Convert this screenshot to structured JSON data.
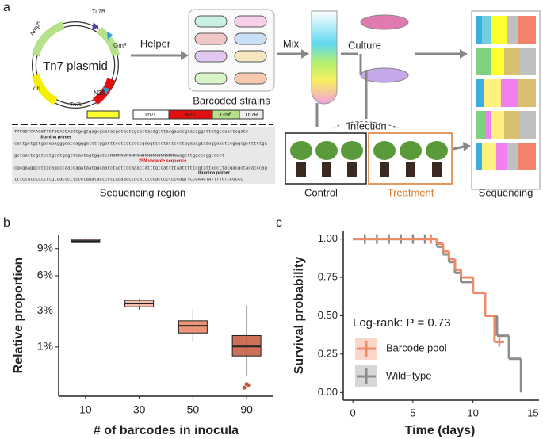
{
  "diagram": {
    "panel_label": "a",
    "plasmid": {
      "title": "Tn7 plasmid",
      "amp": "Ampᴿ",
      "ori": "ori",
      "tn7l": "Tn7L",
      "n25": "N25",
      "gm": "Gmᴿ",
      "tn7r": "Tn7R"
    },
    "construct": {
      "tn7l": "Tn7L",
      "n25": "N25",
      "gm": "Gmᴿ",
      "tn7r": "Tn7R"
    },
    "helper": "Helper",
    "strains": "Barcoded strains",
    "mix": "Mix",
    "culture": "Culture",
    "infection": "Infection",
    "control": "Control",
    "treatment": "Treatment",
    "sequencing": "Sequencing",
    "sequence": {
      "lines": [
        "TTCGGTCAAGGTTCTGGACCAGttgcgtgagcgcatacgctacttgcattacagtttacgaaccgaacaggcttatgtcaattcgatc",
        "cattgctgttgacaaagggaatcagggatcttggatttccttattcccgaagttcctattctctagaaagtataggaacttcgagcgctttttga",
        "gctaattcgatcatgcatgagctcactagtggatccNNNNNNNNNNNNNNNNNNNNNNNNNaagcttggcccggtacct",
        "cgcgaaggccttgcaggccaaccagataatggaaatctagttccaaactatttgtcattttaatttttcgtattagcttacgacgctacacccag",
        "tttccatctattttgtcactcttccctaaataatccttaaaaactccatttccacccctcccagTTCCCAACTATTTTGTCCGCCC"
      ],
      "primer_top": "Illumina primer",
      "variable": "25N variable sequence",
      "primer_bottom": "Illumina primer",
      "caption": "Sequencing region"
    }
  },
  "chart_data": [
    {
      "type": "box",
      "panel_label": "b",
      "y_label": "Relative proportion",
      "x_label": "# of barcodes in inocula",
      "categories": [
        "10",
        "30",
        "50",
        "90"
      ],
      "colors": [
        "#8a6a66",
        "#f2b49c",
        "#e8825e",
        "#c4573c"
      ],
      "boxes": [
        {
          "min": 9.7,
          "q1": 9.75,
          "median": 9.95,
          "q3": 10.2,
          "max": 10.3
        },
        {
          "min": 3.1,
          "q1": 3.3,
          "median": 3.55,
          "q3": 3.8,
          "max": 3.9
        },
        {
          "min": 1.2,
          "q1": 1.65,
          "median": 2.05,
          "q3": 2.35,
          "max": 3.1
        },
        {
          "min": 0.16,
          "q1": 0.67,
          "median": 1.02,
          "q3": 1.52,
          "max": 3.4
        }
      ],
      "outliers": [
        [],
        [],
        [],
        [
          0.03,
          0.06,
          0.05
        ]
      ],
      "yscale": "sqrt",
      "ylim": [
        0,
        10.8
      ],
      "yticks": [
        {
          "value": 1,
          "label": "1%"
        },
        {
          "value": 3,
          "label": "3%"
        },
        {
          "value": 6,
          "label": "6%"
        },
        {
          "value": 9,
          "label": "9%"
        }
      ]
    },
    {
      "type": "survival",
      "panel_label": "c",
      "y_label": "Survival probability",
      "x_label": "Time (days)",
      "annotation": "Log-rank: P = 0.73",
      "series": [
        {
          "name": "Wild−type",
          "color": "#8c8c8c",
          "x": [
            0,
            7,
            7.5,
            8,
            8.5,
            9,
            10,
            11,
            12,
            13,
            14
          ],
          "values": [
            1,
            0.95,
            0.9,
            0.85,
            0.78,
            0.72,
            0.65,
            0.5,
            0.37,
            0.22,
            0
          ],
          "censor_x": [
            1,
            2,
            3,
            4,
            5,
            6
          ],
          "censor_values": [
            1,
            1,
            1,
            1,
            1,
            1
          ]
        },
        {
          "name": "Barcode pool",
          "color": "#f08a64",
          "x": [
            0,
            7,
            7.5,
            8,
            8.5,
            9,
            10,
            11,
            11.8
          ],
          "values": [
            1,
            0.97,
            0.92,
            0.87,
            0.8,
            0.75,
            0.65,
            0.5,
            0.33
          ],
          "censor_x": [
            6.5,
            12.2
          ],
          "censor_values": [
            1,
            0.33
          ]
        }
      ],
      "xlim": [
        -0.8,
        15.5
      ],
      "xticks": [
        0,
        5,
        10,
        15
      ],
      "ylim": [
        -0.05,
        1.05
      ],
      "yticks": [
        {
          "value": 0,
          "label": "0.00"
        },
        {
          "value": 0.25,
          "label": "0.25"
        },
        {
          "value": 0.5,
          "label": "0.50"
        },
        {
          "value": 0.75,
          "label": "0.75"
        },
        {
          "value": 1,
          "label": "1.00"
        }
      ]
    }
  ]
}
